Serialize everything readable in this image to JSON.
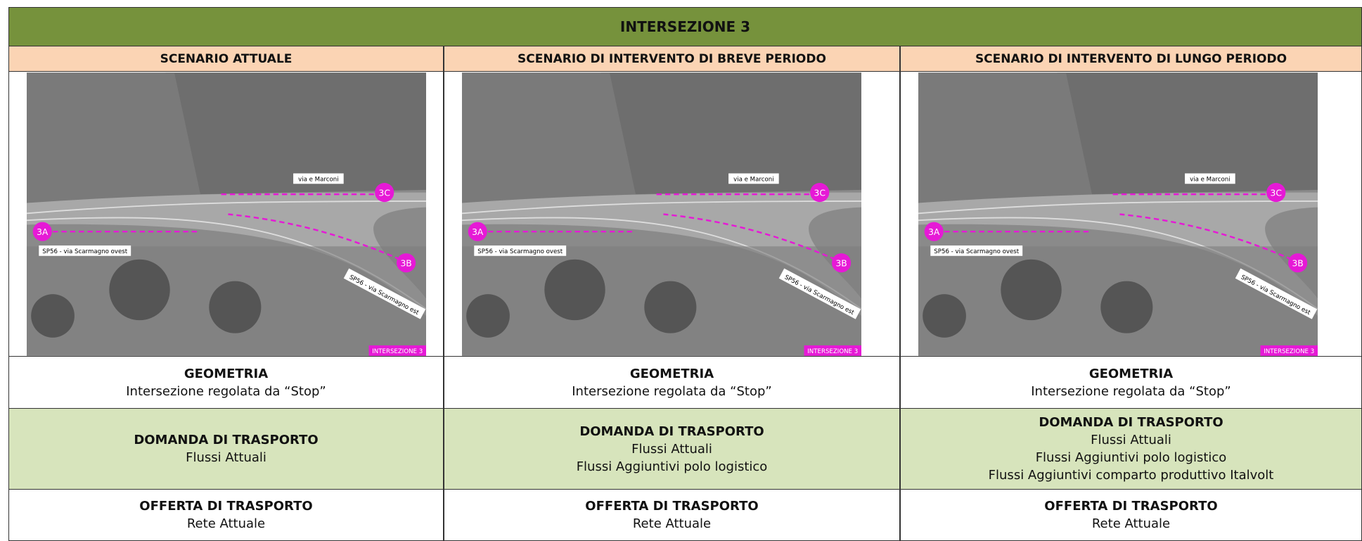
{
  "title": "INTERSEZIONE 3",
  "map_labels": {
    "road_north": "via e Marconi",
    "road_west": "SP56 - via Scarmagno ovest",
    "road_east": "SP56 - via Scarmagno est",
    "node_a": "3A",
    "node_b": "3B",
    "node_c": "3C",
    "tag": "INTERSEZIONE 3"
  },
  "columns": [
    {
      "header": "SCENARIO ATTUALE",
      "geometria": {
        "title": "GEOMETRIA",
        "lines": [
          "Intersezione regolata da “Stop”"
        ]
      },
      "domanda": {
        "title": "DOMANDA DI TRASPORTO",
        "lines": [
          "Flussi Attuali"
        ]
      },
      "offerta": {
        "title": "OFFERTA DI TRASPORTO",
        "lines": [
          "Rete Attuale"
        ]
      }
    },
    {
      "header": "SCENARIO DI INTERVENTO DI BREVE PERIODO",
      "geometria": {
        "title": "GEOMETRIA",
        "lines": [
          "Intersezione regolata da “Stop”"
        ]
      },
      "domanda": {
        "title": "DOMANDA DI TRASPORTO",
        "lines": [
          "Flussi Attuali",
          "Flussi Aggiuntivi polo logistico"
        ]
      },
      "offerta": {
        "title": "OFFERTA DI TRASPORTO",
        "lines": [
          "Rete Attuale"
        ]
      }
    },
    {
      "header": "SCENARIO DI INTERVENTO DI LUNGO PERIODO",
      "geometria": {
        "title": "GEOMETRIA",
        "lines": [
          "Intersezione regolata da “Stop”"
        ]
      },
      "domanda": {
        "title": "DOMANDA DI TRASPORTO",
        "lines": [
          "Flussi Attuali",
          "Flussi Aggiuntivi polo logistico",
          "Flussi Aggiuntivi comparto produttivo Italvolt"
        ]
      },
      "offerta": {
        "title": "OFFERTA DI TRASPORTO",
        "lines": [
          "Rete Attuale"
        ]
      }
    }
  ]
}
